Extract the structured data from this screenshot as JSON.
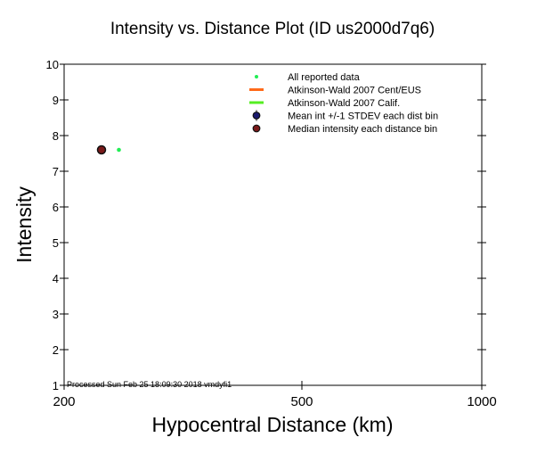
{
  "chart_data": {
    "type": "scatter",
    "title": "Intensity vs. Distance Plot (ID us2000d7q6)",
    "xlabel": "Hypocentral Distance (km)",
    "ylabel": "Intensity",
    "xscale": "log",
    "xlim": [
      200,
      1000
    ],
    "ylim": [
      1,
      10
    ],
    "xticks": [
      "200",
      "500",
      "1000"
    ],
    "xtick_values": [
      200,
      500,
      1000
    ],
    "yticks": [
      "1",
      "2",
      "3",
      "4",
      "5",
      "6",
      "7",
      "8",
      "9",
      "10"
    ],
    "series": [
      {
        "name": "All reported data",
        "color": "#22ee55",
        "points": [
          {
            "x": 247,
            "y": 7.6
          }
        ]
      },
      {
        "name": "Atkinson-Wald 2007 Cent/EUS",
        "color": "#ff6a1a",
        "points": []
      },
      {
        "name": "Atkinson-Wald 2007 Calif.",
        "color": "#55ee22",
        "points": []
      },
      {
        "name": "Mean int +/-1 STDEV each dist bin",
        "color": "#1a1a6e",
        "points": []
      },
      {
        "name": "Median intensity each distance bin",
        "color": "#7a1a1a",
        "points": [
          {
            "x": 231,
            "y": 7.6
          }
        ]
      }
    ],
    "legend_position": "top-right",
    "annotation": "Processed Sun Feb 25 18:09:30 2018 vmdyfi1"
  }
}
